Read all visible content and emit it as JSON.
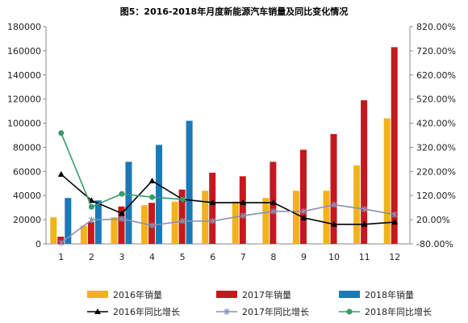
{
  "chart_data": {
    "type": "bar",
    "title": "图5：2016-2018年月度新能源汽车销量及同比变化情况",
    "categories": [
      "1",
      "2",
      "3",
      "4",
      "5",
      "6",
      "7",
      "8",
      "9",
      "10",
      "11",
      "12"
    ],
    "ylim": [
      0,
      180000
    ],
    "y_ticks": [
      "0",
      "20000",
      "40000",
      "60000",
      "80000",
      "100000",
      "120000",
      "140000",
      "160000",
      "180000"
    ],
    "y2lim": [
      -80,
      920
    ],
    "y2_ticks": [
      "-80.00%",
      "20.00%",
      "120.00%",
      "220.00%",
      "320.00%",
      "420.00%",
      "520.00%",
      "620.00%",
      "720.00%",
      "820.00%"
    ],
    "legend_position": "bottom",
    "bars": [
      {
        "name": "2016年销量",
        "color": "#f2b21b",
        "values": [
          22000,
          15000,
          22000,
          32000,
          35000,
          44000,
          35000,
          38000,
          44000,
          44000,
          65000,
          104000
        ]
      },
      {
        "name": "2017年销量",
        "color": "#c4191e",
        "values": [
          6000,
          18000,
          31000,
          34000,
          45000,
          59000,
          56000,
          68000,
          78000,
          91000,
          119000,
          163000
        ]
      },
      {
        "name": "2018年销量",
        "color": "#1a79b7",
        "values": [
          38000,
          36000,
          68000,
          82000,
          102000,
          null,
          null,
          null,
          null,
          null,
          null,
          null
        ]
      }
    ],
    "lines": [
      {
        "name": "2016年同比增长",
        "color": "#000000",
        "marker": "triangle",
        "values": [
          240,
          120,
          60,
          210,
          125,
          110,
          110,
          110,
          40,
          10,
          10,
          20
        ]
      },
      {
        "name": "2017年同比增长",
        "color": "#8a8fb3",
        "marker": "star",
        "values": [
          -75,
          30,
          35,
          5,
          25,
          25,
          50,
          70,
          70,
          100,
          80,
          55
        ]
      },
      {
        "name": "2018年同比增长",
        "color": "#3a9a6a",
        "marker": "circle",
        "values": [
          430,
          90,
          150,
          135,
          125,
          null,
          null,
          null,
          null,
          null,
          null,
          null
        ]
      }
    ]
  }
}
